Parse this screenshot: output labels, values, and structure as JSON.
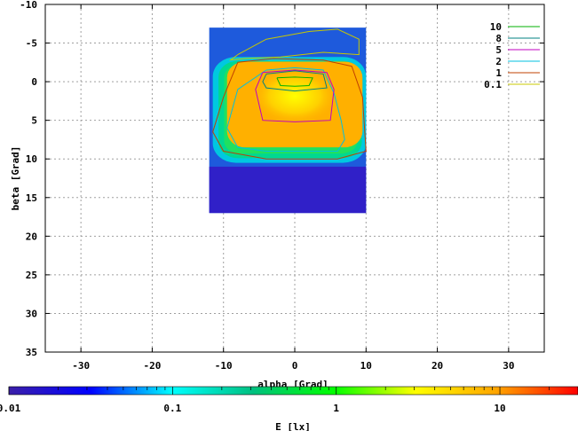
{
  "chart_data": {
    "type": "heatmap",
    "title": "",
    "xlabel": "alpha [Grad]",
    "ylabel": "beta [Grad]",
    "xlim": [
      -35,
      35
    ],
    "ylim": [
      -10,
      35
    ],
    "y_axis_inverted": true,
    "x_ticks": [
      "-30",
      "-20",
      "-10",
      "0",
      "10",
      "20",
      "30"
    ],
    "y_ticks": [
      "-10",
      "-5",
      "0",
      "5",
      "10",
      "15",
      "20",
      "25",
      "30",
      "35"
    ],
    "grid": true,
    "data_extent": {
      "alpha": [
        -12,
        10
      ],
      "beta": [
        -7,
        17
      ]
    },
    "contour_legend": [
      {
        "level": "10",
        "color": "#00b000"
      },
      {
        "level": "8",
        "color": "#008080"
      },
      {
        "level": "5",
        "color": "#c000c0"
      },
      {
        "level": "2",
        "color": "#00c0e0"
      },
      {
        "level": "1",
        "color": "#c04000"
      },
      {
        "level": "0.1",
        "color": "#c8c800"
      }
    ],
    "contours": [
      {
        "level": "0.1",
        "color": "#c8c800",
        "alpha": [
          -8,
          -4,
          2,
          6,
          9,
          9,
          4,
          -2,
          -7,
          -9,
          -8
        ],
        "beta": [
          -3.5,
          -5.5,
          -6.5,
          -6.8,
          -5.5,
          -3.5,
          -3.8,
          -3.2,
          -3.0,
          -2.8,
          -3.5
        ]
      },
      {
        "level": "1",
        "color": "#c04000",
        "alpha": [
          -8,
          -3,
          4,
          8,
          9.5,
          10,
          6,
          -4,
          -10,
          -11.5,
          -10,
          -8
        ],
        "beta": [
          -2.5,
          -3.0,
          -2.8,
          -2.0,
          2,
          9,
          10,
          10,
          9.0,
          6.5,
          2,
          -2.5
        ]
      },
      {
        "level": "2",
        "color": "#00c0e0",
        "alpha": [
          -4,
          0,
          4,
          5.5,
          6.5,
          7,
          6,
          -4,
          -8,
          -9.5,
          -8,
          -4
        ],
        "beta": [
          -1.5,
          -1.8,
          -1.5,
          1.5,
          5,
          7.5,
          9,
          9,
          8.5,
          6,
          1,
          -1.5
        ]
      },
      {
        "level": "5",
        "color": "#c000c0",
        "alpha": [
          -4.5,
          0,
          4.5,
          5.5,
          5.0,
          0,
          -4.5,
          -5.5,
          -4.5
        ],
        "beta": [
          -1.2,
          -1.5,
          -1.2,
          1,
          5,
          5.2,
          5,
          1,
          -1.2
        ]
      },
      {
        "level": "8",
        "color": "#008080",
        "alpha": [
          -4.0,
          0,
          4.0,
          4.5,
          0,
          -4.0,
          -4.5,
          -4.0
        ],
        "beta": [
          -1.0,
          -1.4,
          -1.0,
          0.8,
          1.2,
          0.8,
          0,
          -1.0
        ]
      },
      {
        "level": "10",
        "color": "#00b000",
        "alpha": [
          -2.5,
          0,
          2.5,
          2,
          0,
          -2,
          -2.5
        ],
        "beta": [
          -0.5,
          -0.6,
          -0.5,
          0.5,
          0.6,
          0.5,
          -0.5
        ]
      }
    ],
    "colorbar": {
      "label": "E [lx]",
      "scale": "log",
      "range": [
        0.01,
        30
      ],
      "tick_labels": [
        "0.01",
        "0.1",
        "1",
        "10"
      ],
      "tick_values": [
        0.01,
        0.1,
        1,
        10
      ],
      "color_stops": [
        "#3b1fa8",
        "#0000ff",
        "#00ffff",
        "#00c080",
        "#00ff00",
        "#ffff00",
        "#ffa500",
        "#ff0000"
      ]
    }
  }
}
